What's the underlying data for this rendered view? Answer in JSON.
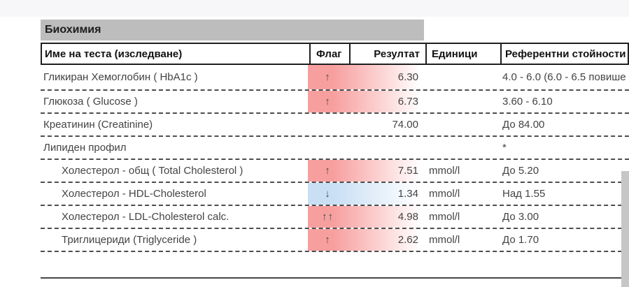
{
  "section": {
    "title": "Биохимия"
  },
  "table": {
    "columns": [
      {
        "key": "name",
        "label": "Име на теста (изследване)"
      },
      {
        "key": "flag",
        "label": "Флаг"
      },
      {
        "key": "result",
        "label": "Резултат"
      },
      {
        "key": "units",
        "label": "Единици"
      },
      {
        "key": "reference",
        "label": "Референтни стойности"
      }
    ],
    "rows": [
      {
        "name": "Гликиран Хемоглобин ( HbA1c )",
        "flag": "↑",
        "result": "6.30",
        "units": "",
        "reference": "4.0 - 6.0 (6.0 - 6.5 повише",
        "highlight": "high",
        "indent": false
      },
      {
        "name": "Глюкоза ( Glucose )",
        "flag": "↑",
        "result": "6.73",
        "units": "",
        "reference": "3.60 - 6.10",
        "highlight": "high",
        "indent": false
      },
      {
        "name": "Креатинин (Creatinine)",
        "flag": "",
        "result": "74.00",
        "units": "",
        "reference": "До 84.00",
        "highlight": "none",
        "indent": false
      },
      {
        "name": "Липиден профил",
        "flag": "",
        "result": "",
        "units": "",
        "reference": "*",
        "highlight": "none",
        "indent": false
      },
      {
        "name": "Холестерол - общ ( Total Cholesterol )",
        "flag": "↑",
        "result": "7.51",
        "units": "mmol/l",
        "reference": "До 5.20",
        "highlight": "high",
        "indent": true
      },
      {
        "name": "Холестерол - HDL-Cholesterol",
        "flag": "↓",
        "result": "1.34",
        "units": "mmol/l",
        "reference": "Над 1.55",
        "highlight": "low",
        "indent": true
      },
      {
        "name": "Холестерол - LDL-Cholesterol calc.",
        "flag": "↑↑",
        "result": "4.98",
        "units": "mmol/l",
        "reference": "До 3.00",
        "highlight": "high",
        "indent": true
      },
      {
        "name": "Триглицериди (Triglyceride )",
        "flag": "↑",
        "result": "2.62",
        "units": "mmol/l",
        "reference": "До 1.70",
        "highlight": "high",
        "indent": true
      }
    ]
  },
  "colors": {
    "high_bg": "#f79f9f",
    "low_bg": "#c9dff4",
    "section_bg": "#bdbdbd",
    "top_band": "#f7f7f9",
    "scrollbar": "#c6c6c6",
    "text": "#434343",
    "border_dark": "#1f1f1f"
  }
}
